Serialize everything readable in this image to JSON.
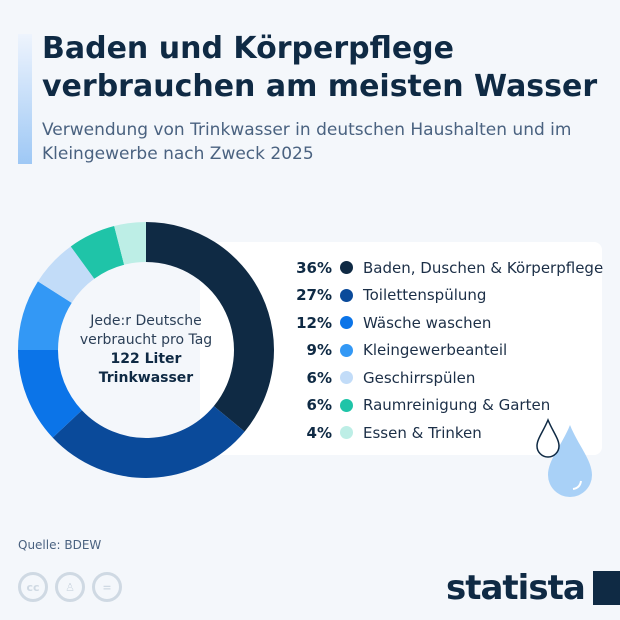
{
  "title": "Baden und Körperpflege verbrauchen am meisten Wasser",
  "subtitle": "Verwendung von Trinkwasser in deutschen Haushalten und im Kleingewerbe nach Zweck 2025",
  "center": {
    "line1": "Jede:r Deutsche",
    "line2": "verbraucht pro Tag",
    "line3": "122 Liter",
    "line4": "Trinkwasser"
  },
  "source": "Quelle: BDEW",
  "logo": "statista",
  "license_icons": [
    "cc-icon",
    "person-icon",
    "equals-icon"
  ],
  "chart_data": {
    "type": "pie",
    "donut": true,
    "categories": [
      "Baden, Duschen & Körperpflege",
      "Toilettenspülung",
      "Wäsche waschen",
      "Kleingewerbeanteil",
      "Geschirrspülen",
      "Raumreinigung & Garten",
      "Essen & Trinken"
    ],
    "values": [
      36,
      27,
      12,
      9,
      6,
      6,
      4
    ],
    "labels": [
      "36%",
      "27%",
      "12%",
      "9%",
      "6%",
      "6%",
      "4%"
    ],
    "colors": [
      "#0f2a44",
      "#0a4a9a",
      "#0b74e8",
      "#3398f5",
      "#c2dcf8",
      "#1fc4a8",
      "#bdeee6"
    ],
    "legend_placement": "right"
  }
}
